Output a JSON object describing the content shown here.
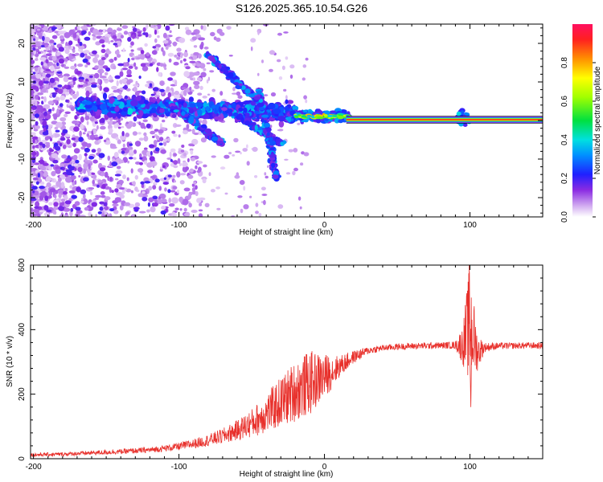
{
  "title": "S126.2025.365.10.54.G26",
  "chart_data": [
    {
      "type": "heatmap",
      "title": "",
      "xlabel": "Height of straight line (km)",
      "ylabel": "Frequency (Hz)",
      "xlim": [
        -202,
        150
      ],
      "ylim": [
        -25,
        25
      ],
      "xticks": [
        -200,
        -100,
        0,
        100
      ],
      "xtick_labels": [
        "-200",
        "-100",
        "0",
        "100"
      ],
      "yticks": [
        -20,
        -10,
        0,
        10,
        20
      ],
      "ytick_labels": [
        "-20",
        "-10",
        "0",
        "10",
        "20"
      ],
      "colorbar": {
        "label": "Normalized spectral amplitude",
        "range": [
          0,
          1
        ],
        "ticks": [
          0.0,
          0.2,
          0.4,
          0.6,
          0.8
        ],
        "tick_labels": [
          "0.0",
          "0.2",
          "0.4",
          "0.6",
          "0.8"
        ]
      },
      "features": [
        {
          "name": "carrier-line",
          "x_range": [
            15,
            150
          ],
          "frequency": 0.2,
          "amplitude": 0.9
        },
        {
          "name": "positive-branch",
          "x_range": [
            -170,
            -20
          ],
          "frequency_range": [
            4,
            2
          ],
          "amplitude_peak": 0.3
        },
        {
          "name": "descending-streak-1",
          "from": [
            -110,
            5
          ],
          "to": [
            -70,
            -6
          ]
        },
        {
          "name": "descending-streak-2",
          "from": [
            -70,
            4
          ],
          "to": [
            -30,
            -6
          ]
        },
        {
          "name": "descending-streak-3",
          "from": [
            -45,
            8
          ],
          "to": [
            -33,
            -15
          ]
        },
        {
          "name": "upper-streak",
          "from": [
            -80,
            17
          ],
          "to": [
            -45,
            5
          ]
        },
        {
          "name": "near-zero-cluster",
          "x_range": [
            -25,
            17
          ],
          "frequency": 1.0,
          "amplitude_peak": 0.8
        },
        {
          "name": "burst-at-95",
          "x": 95,
          "frequency_range": [
            -2,
            3
          ],
          "amplitude_peak": 0.4
        }
      ]
    },
    {
      "type": "line",
      "title": "",
      "xlabel": "Height of straight line (km)",
      "ylabel": "SNR (10 * v/v)",
      "xlim": [
        -202,
        150
      ],
      "ylim": [
        0,
        600
      ],
      "xticks": [
        -200,
        -100,
        0,
        100
      ],
      "xtick_labels": [
        "-200",
        "-100",
        "0",
        "100"
      ],
      "yticks": [
        0,
        200,
        400,
        600
      ],
      "ytick_labels": [
        "0",
        "200",
        "400",
        "600"
      ],
      "color": "#e8312c",
      "series": [
        {
          "name": "SNR",
          "x": [
            -202,
            -180,
            -160,
            -140,
            -120,
            -110,
            -100,
            -90,
            -80,
            -70,
            -60,
            -50,
            -40,
            -30,
            -20,
            -10,
            0,
            10,
            20,
            30,
            40,
            50,
            60,
            70,
            80,
            90,
            95,
            100,
            105,
            110,
            120,
            130,
            140,
            150
          ],
          "values": [
            12,
            14,
            18,
            22,
            27,
            32,
            38,
            46,
            57,
            70,
            88,
            110,
            140,
            175,
            210,
            235,
            255,
            285,
            315,
            335,
            343,
            347,
            349,
            350,
            351,
            352,
            352,
            420,
            330,
            345,
            350,
            350,
            351,
            350
          ],
          "noise": [
            6,
            6,
            7,
            8,
            9,
            10,
            12,
            15,
            18,
            24,
            32,
            45,
            60,
            80,
            95,
            100,
            70,
            35,
            20,
            12,
            10,
            10,
            10,
            10,
            10,
            12,
            60,
            190,
            60,
            15,
            10,
            10,
            10,
            10
          ]
        }
      ]
    }
  ]
}
